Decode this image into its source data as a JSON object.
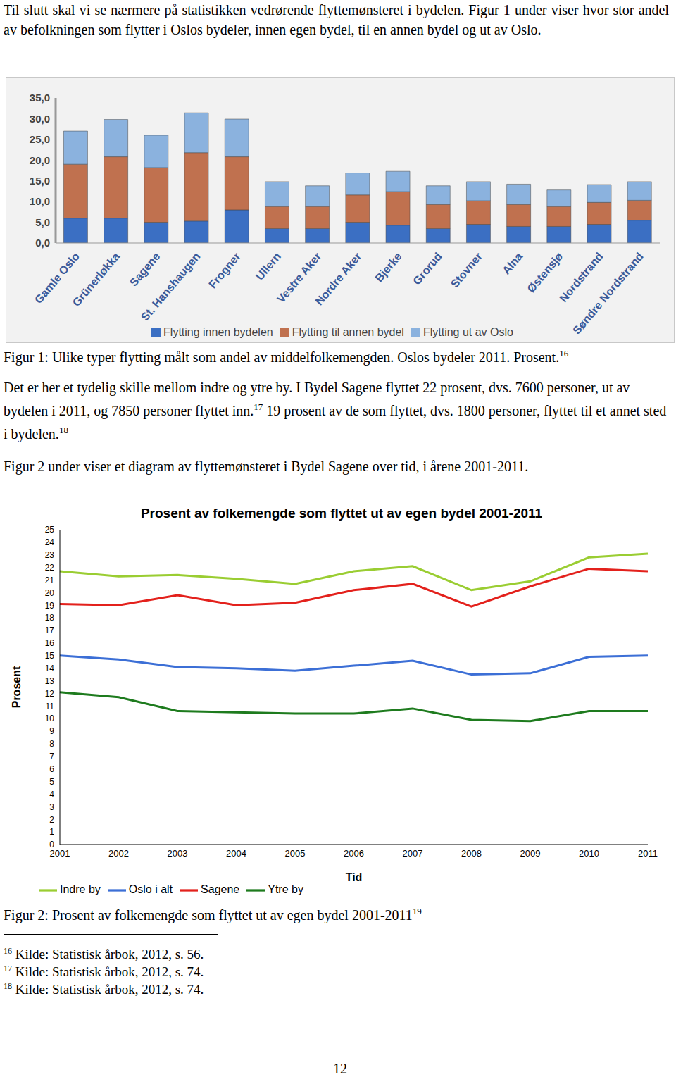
{
  "document": {
    "intro": [
      {
        "text": "Til slutt skal vi se nærmere på statistikken vedrørende flyttemønsteret i bydelen. Figur 1 under viser hvor stor andel av befolkningen som flytter i Oslos bydeler, innen egen bydel, til en annen bydel og ut av Oslo."
      }
    ],
    "figure1_caption": [
      {
        "text": "Figur 1: Ulike typer flytting målt som andel av middelfolkemengden. Oslos bydeler 2011. Prosent."
      },
      {
        "sup": "16"
      }
    ],
    "paragraph": [
      {
        "text": "Det er her et tydelig skille mellom indre og ytre by. I Bydel Sagene flyttet 22 prosent, dvs. 7600 personer, ut av bydelen i 2011, og 7850 personer flyttet inn."
      },
      {
        "sup": "17"
      },
      {
        "text": " 19 prosent av de som flyttet, dvs. 1800 personer, flyttet til et annet sted i bydelen."
      },
      {
        "sup": "18"
      }
    ],
    "figure2_intro": [
      {
        "text": "Figur 2 under viser et diagram av flyttemønsteret i Bydel Sagene over tid, i årene 2001-2011."
      }
    ],
    "figure2_caption": [
      {
        "text": "Figur 2: Prosent av folkemengde som flyttet ut av egen bydel 2001-2011"
      },
      {
        "sup": "19"
      }
    ],
    "footnotes": [
      {
        "sup": "16",
        "text": "Kilde: Statistisk årbok, 2012, s. 56."
      },
      {
        "sup": "17",
        "text": "Kilde: Statistisk årbok, 2012, s. 74."
      },
      {
        "sup": "18",
        "text": "Kilde: Statistisk årbok, 2012, s. 74."
      }
    ],
    "page_number": "12"
  },
  "chart_data": [
    {
      "type": "bar",
      "stacked": true,
      "grid": false,
      "legend": "bottom",
      "categories": [
        "Gamle Oslo",
        "Grünerløkka",
        "Sagene",
        "St. Hanshaugen",
        "Frogner",
        "Ullern",
        "Vestre Aker",
        "Nordre Aker",
        "Bjerke",
        "Grorud",
        "Stovner",
        "Alna",
        "Østensjø",
        "Nordstrand",
        "Søndre Nordstrand"
      ],
      "series": [
        {
          "name": "Flytting innen bydelen",
          "color": "#3b6fc3",
          "values": [
            6,
            6,
            5,
            5.3,
            8,
            3.5,
            3.5,
            5,
            4.3,
            3.5,
            4.5,
            4,
            4,
            4.5,
            5.5
          ]
        },
        {
          "name": "Flytting til annen bydel",
          "color": "#c0714f",
          "values": [
            13,
            14.8,
            13.2,
            16.5,
            12.8,
            5.3,
            5.3,
            6.6,
            8.1,
            5.8,
            5.7,
            5.3,
            4.8,
            5.3,
            4.8
          ]
        },
        {
          "name": "Flytting ut av Oslo",
          "color": "#8bb2de",
          "values": [
            8,
            9,
            7.8,
            9.6,
            9.1,
            6,
            5,
            5.3,
            4.9,
            4.5,
            4.6,
            4.9,
            4,
            4.3,
            4.5
          ]
        }
      ],
      "ylim": [
        0,
        35
      ],
      "yticks": [
        {
          "value": 0,
          "label": "0,0"
        },
        {
          "value": 5,
          "label": "5,0"
        },
        {
          "value": 10,
          "label": "10,0"
        },
        {
          "value": 15,
          "label": "15,0"
        },
        {
          "value": 20,
          "label": "20,0"
        },
        {
          "value": 25,
          "label": "25,0"
        },
        {
          "value": 30,
          "label": "30,0"
        },
        {
          "value": 35,
          "label": "35,0"
        }
      ]
    },
    {
      "type": "line",
      "grid": false,
      "legend": "bottom",
      "title": "Prosent av folkemengde som flyttet ut av egen bydel 2001-2011",
      "x_label": "Tid",
      "y_label": "Prosent",
      "categories": [
        "2001",
        "2002",
        "2003",
        "2004",
        "2005",
        "2006",
        "2007",
        "2008",
        "2009",
        "2010",
        "2011"
      ],
      "series": [
        {
          "name": "Sagene",
          "color": "#e3211c",
          "values": [
            19.1,
            19.0,
            19.8,
            19.0,
            19.2,
            20.2,
            20.7,
            18.9,
            20.5,
            21.9,
            21.7
          ]
        },
        {
          "name": "Indre by",
          "color": "#9acd32",
          "values": [
            21.7,
            21.3,
            21.4,
            21.1,
            20.7,
            21.7,
            22.1,
            20.2,
            20.9,
            22.8,
            23.1
          ]
        },
        {
          "name": "Ytre by",
          "color": "#1e7b1e",
          "values": [
            12.1,
            11.7,
            10.6,
            10.5,
            10.4,
            10.4,
            10.8,
            9.9,
            9.8,
            10.6,
            10.6
          ]
        },
        {
          "name": "Oslo i alt",
          "color": "#3c6fd6",
          "values": [
            15.0,
            14.7,
            14.1,
            14.0,
            13.8,
            14.2,
            14.6,
            13.5,
            13.6,
            14.9,
            15.0
          ]
        }
      ],
      "ylim": [
        0,
        25
      ],
      "yticks": [
        0,
        1,
        2,
        3,
        4,
        5,
        6,
        7,
        8,
        9,
        10,
        11,
        12,
        13,
        14,
        15,
        16,
        17,
        18,
        19,
        20,
        21,
        22,
        23,
        24,
        25
      ]
    }
  ]
}
